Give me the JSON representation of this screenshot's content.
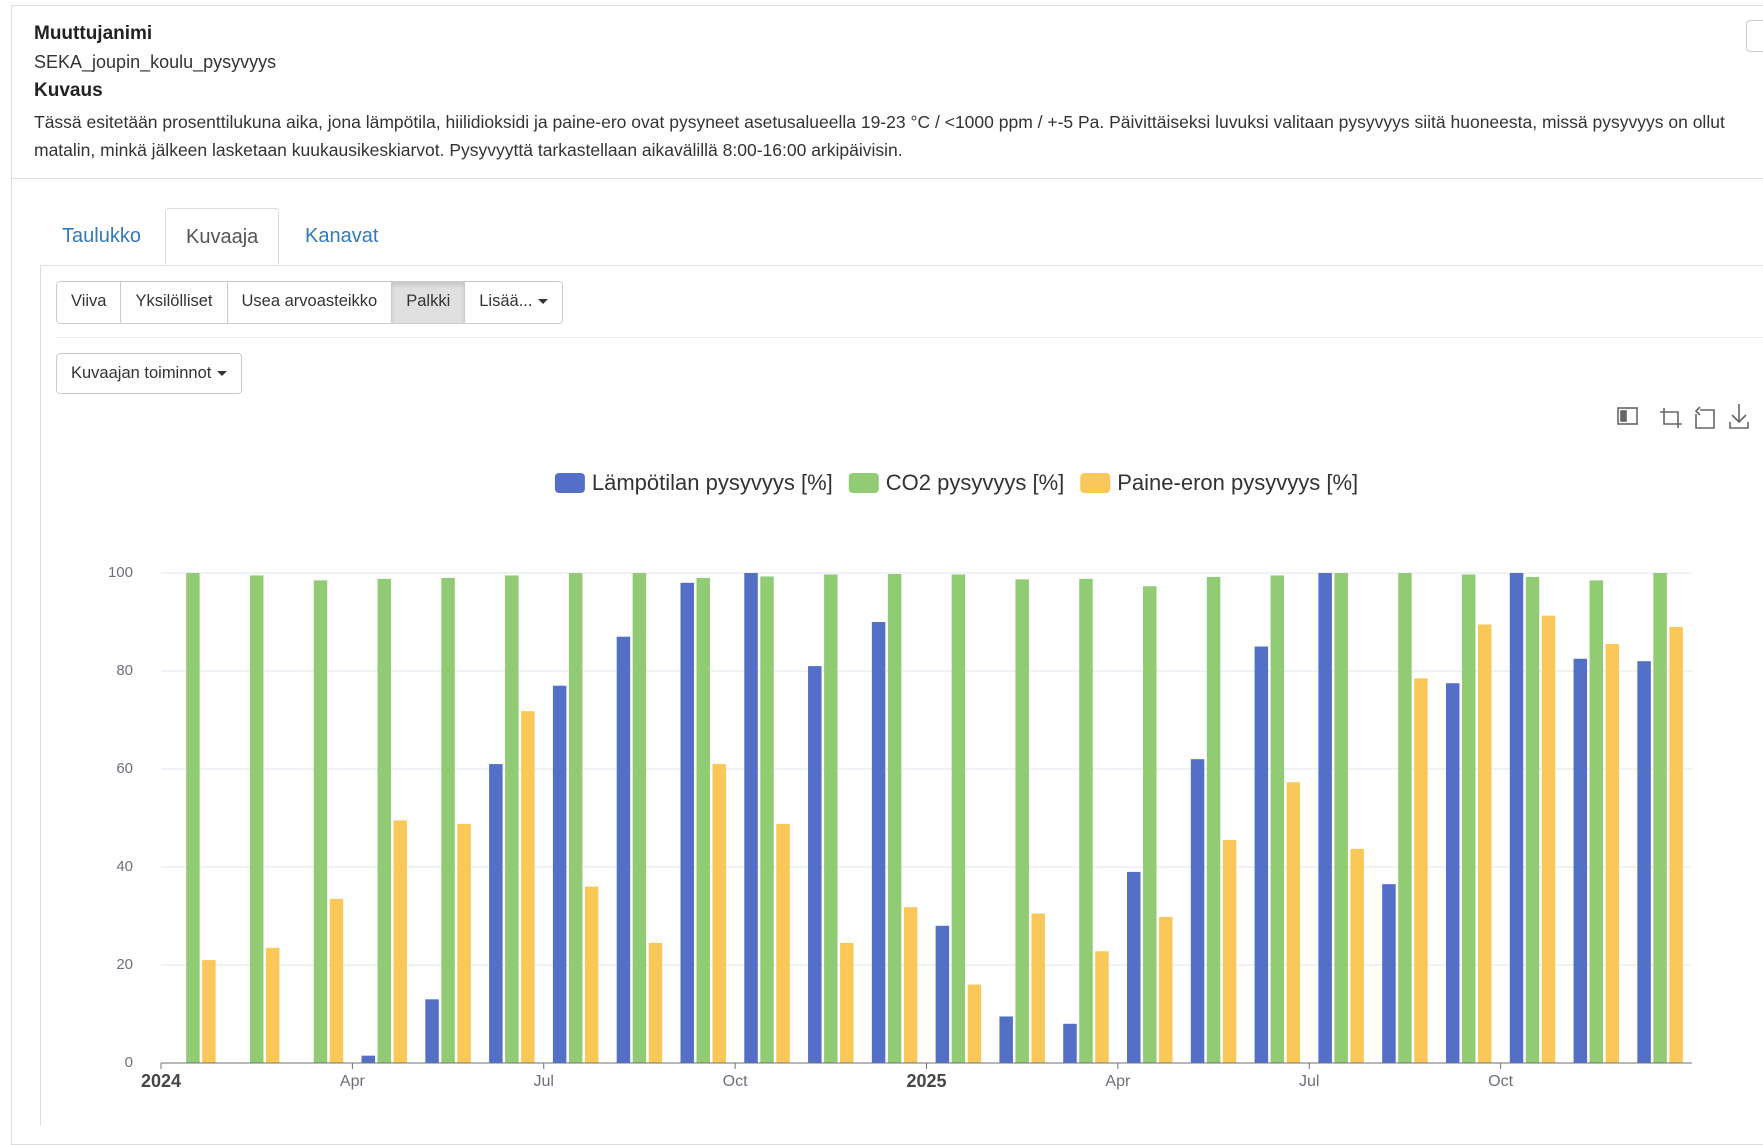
{
  "header": {
    "name_label": "Muuttujanimi",
    "name": "SEKA_joupin_koulu_pysyvyys",
    "description_label": "Kuvaus",
    "description": "Tässä esitetään prosenttilukuna aika, jona lämpötila, hiilidioksidi ja paine-ero ovat pysyneet asetusalueella 19-23 °C / <1000 ppm / +-5 Pa. Päivittäiseksi luvuksi valitaan pysyvyys siitä huoneesta, missä pysyvyys on ollut matalin, minkä jälkeen lasketaan kuukausikeskiarvot. Pysyvyyttä tarkastellaan aikavälillä 8:00-16:00 arkipäivisin."
  },
  "tabs": [
    "Taulukko",
    "Kuvaaja",
    "Kanavat"
  ],
  "active_tab": 1,
  "chart_buttons": [
    "Viiva",
    "Yksilölliset",
    "Usea arvoasteikko",
    "Palkki",
    "Lisää..."
  ],
  "active_button": 3,
  "actions_button": "Kuvaajan toiminnot",
  "chart_data": {
    "type": "bar",
    "categories": [
      "2024",
      null,
      null,
      "Apr",
      null,
      null,
      "Jul",
      null,
      null,
      "Oct",
      null,
      null,
      "2025",
      null,
      null,
      "Apr",
      null,
      null,
      "Jul",
      null,
      null,
      "Oct",
      null,
      null
    ],
    "series": [
      {
        "name": "Lämpötilan pysyvyys [%]",
        "color": "#5470c6",
        "values": [
          null,
          null,
          null,
          1.5,
          13,
          61,
          77,
          87,
          98,
          100,
          81,
          90,
          28,
          9.5,
          8,
          39,
          62,
          85,
          100,
          36.5,
          77.5,
          100,
          82.5,
          82
        ]
      },
      {
        "name": "CO2 pysyvyys [%]",
        "color": "#91cc75",
        "values": [
          100,
          99.5,
          98.5,
          98.8,
          99,
          99.5,
          100,
          100,
          99,
          99.3,
          99.7,
          99.8,
          99.7,
          98.7,
          98.8,
          97.3,
          99.2,
          99.5,
          100,
          100,
          99.7,
          99.2,
          98.5,
          100
        ]
      },
      {
        "name": "Paine-eron pysyvyys [%]",
        "color": "#fac858",
        "values": [
          21,
          23.5,
          33.5,
          49.5,
          48.8,
          71.8,
          36,
          24.5,
          61,
          48.8,
          24.5,
          31.8,
          16,
          30.5,
          22.8,
          29.8,
          45.5,
          57.3,
          43.7,
          78.5,
          89.5,
          91.3,
          85.5,
          89
        ]
      }
    ],
    "ylim": [
      0,
      100
    ],
    "yticks": [
      0,
      20,
      40,
      60,
      80,
      100
    ],
    "grid": true,
    "legend": "top"
  }
}
